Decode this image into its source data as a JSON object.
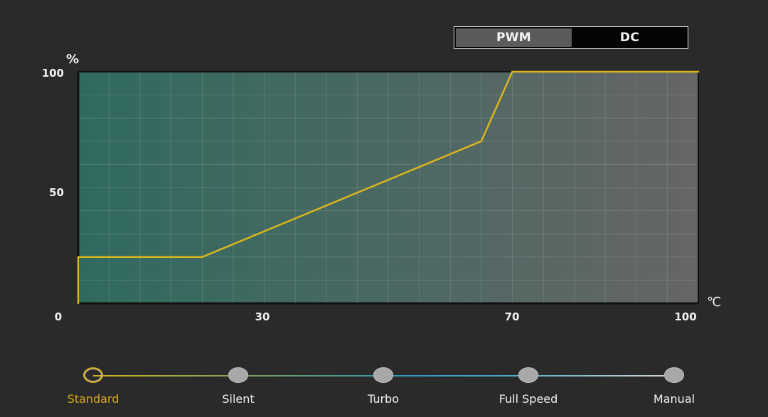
{
  "mode_toggle": {
    "options": [
      "PWM",
      "DC"
    ],
    "selected": "PWM"
  },
  "chart_data": {
    "type": "line",
    "ylabel": "%",
    "xlabel": "℃",
    "y_ticks": [
      "100",
      "50"
    ],
    "x_ticks": [
      "0",
      "30",
      "70",
      "100"
    ],
    "xlim": [
      0,
      100
    ],
    "ylim": [
      0,
      100
    ],
    "series": [
      {
        "x": [
          0,
          0,
          20,
          65,
          70,
          100
        ],
        "y": [
          0,
          20,
          20,
          70,
          100,
          100
        ],
        "color": "#d8b51f"
      }
    ],
    "grid": true,
    "background_gradient": [
      "#2f6a5f",
      "#666666"
    ]
  },
  "profiles": [
    {
      "label": "Standard",
      "active": true
    },
    {
      "label": "Silent",
      "active": false
    },
    {
      "label": "Turbo",
      "active": false
    },
    {
      "label": "Full Speed",
      "active": false
    },
    {
      "label": "Manual",
      "active": false
    }
  ],
  "colors": {
    "background": "#2a2a2a",
    "accent": "#d8aa18",
    "curve": "#d8b51f",
    "grid": "#bdbdbd"
  }
}
